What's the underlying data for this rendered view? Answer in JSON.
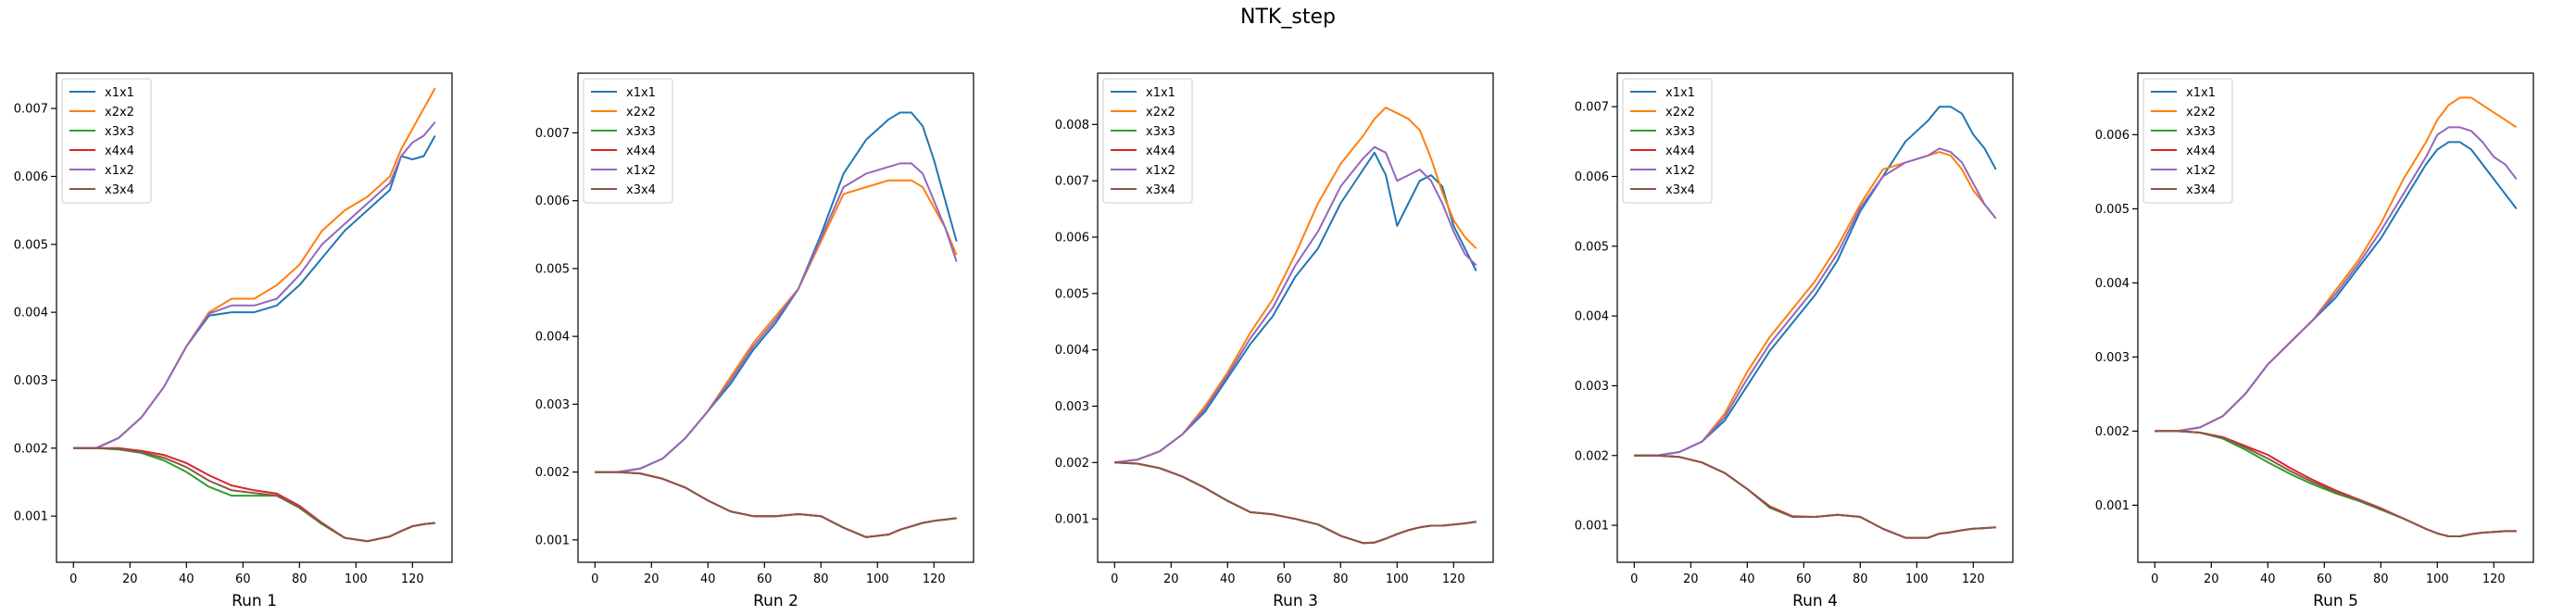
{
  "figure_title": "NTK_step",
  "colors": {
    "x1x1": "#1f77b4",
    "x2x2": "#ff7f0e",
    "x3x3": "#2ca02c",
    "x4x4": "#d62728",
    "x1x2": "#9467bd",
    "x3x4": "#8c564b"
  },
  "chart_data": [
    {
      "type": "line",
      "title": "",
      "xlabel": "Run 1",
      "ylabel": "",
      "xlim": [
        -6,
        134
      ],
      "ylim": [
        0.00032,
        0.00752
      ],
      "xticks": [
        0,
        20,
        40,
        60,
        80,
        100,
        120
      ],
      "yticks": [
        0.001,
        0.002,
        0.003,
        0.004,
        0.005,
        0.006,
        0.007
      ],
      "ytick_labels": [
        "0.001",
        "0.002",
        "0.003",
        "0.004",
        "0.005",
        "0.006",
        "0.007"
      ],
      "legend": "top-left",
      "grid": false,
      "x": [
        0,
        8,
        16,
        24,
        32,
        40,
        48,
        56,
        64,
        72,
        80,
        88,
        96,
        104,
        112,
        116,
        120,
        124,
        128
      ],
      "series": [
        {
          "name": "x1x1",
          "values": [
            0.002,
            0.002,
            0.00215,
            0.00245,
            0.0029,
            0.0035,
            0.00395,
            0.004,
            0.004,
            0.0041,
            0.0044,
            0.0048,
            0.0052,
            0.0055,
            0.0058,
            0.0063,
            0.00625,
            0.0063,
            0.0066
          ]
        },
        {
          "name": "x2x2",
          "values": [
            0.002,
            0.002,
            0.00215,
            0.00245,
            0.0029,
            0.0035,
            0.004,
            0.0042,
            0.0042,
            0.0044,
            0.0047,
            0.0052,
            0.0055,
            0.0057,
            0.006,
            0.0064,
            0.0067,
            0.007,
            0.0073
          ]
        },
        {
          "name": "x3x3",
          "values": [
            0.002,
            0.002,
            0.00198,
            0.00193,
            0.00182,
            0.00165,
            0.00143,
            0.0013,
            0.0013,
            0.0013,
            0.00112,
            0.00088,
            0.00068,
            0.00063,
            0.0007,
            0.00078,
            0.00085,
            0.00088,
            0.0009
          ]
        },
        {
          "name": "x4x4",
          "values": [
            0.002,
            0.002,
            0.002,
            0.00196,
            0.0019,
            0.00178,
            0.0016,
            0.00145,
            0.00138,
            0.00133,
            0.00115,
            0.0009,
            0.00068,
            0.00063,
            0.0007,
            0.00078,
            0.00085,
            0.00088,
            0.0009
          ]
        },
        {
          "name": "x1x2",
          "values": [
            0.002,
            0.002,
            0.00215,
            0.00245,
            0.0029,
            0.0035,
            0.00398,
            0.0041,
            0.0041,
            0.0042,
            0.00455,
            0.005,
            0.0053,
            0.0056,
            0.0059,
            0.0063,
            0.0065,
            0.0066,
            0.0068
          ]
        },
        {
          "name": "x3x4",
          "values": [
            0.002,
            0.002,
            0.00199,
            0.00194,
            0.00186,
            0.00172,
            0.00152,
            0.00138,
            0.00134,
            0.0013,
            0.00113,
            0.00089,
            0.00068,
            0.00063,
            0.0007,
            0.00078,
            0.00085,
            0.00088,
            0.0009
          ]
        }
      ]
    },
    {
      "type": "line",
      "title": "",
      "xlabel": "Run 2",
      "ylabel": "",
      "xlim": [
        -6,
        134
      ],
      "ylim": [
        0.00067,
        0.00788
      ],
      "xticks": [
        0,
        20,
        40,
        60,
        80,
        100,
        120
      ],
      "yticks": [
        0.001,
        0.002,
        0.003,
        0.004,
        0.005,
        0.006,
        0.007
      ],
      "ytick_labels": [
        "0.001",
        "0.002",
        "0.003",
        "0.004",
        "0.005",
        "0.006",
        "0.007"
      ],
      "legend": "top-left",
      "grid": false,
      "x": [
        0,
        8,
        16,
        24,
        32,
        40,
        48,
        56,
        64,
        72,
        80,
        88,
        96,
        104,
        108,
        112,
        116,
        120,
        124,
        128
      ],
      "series": [
        {
          "name": "x1x1",
          "values": [
            0.002,
            0.002,
            0.00205,
            0.0022,
            0.0025,
            0.0029,
            0.0033,
            0.0038,
            0.0042,
            0.0047,
            0.0055,
            0.0064,
            0.0069,
            0.0072,
            0.0073,
            0.0073,
            0.0071,
            0.0066,
            0.006,
            0.0054
          ]
        },
        {
          "name": "x2x2",
          "values": [
            0.002,
            0.002,
            0.00205,
            0.0022,
            0.0025,
            0.0029,
            0.0034,
            0.0039,
            0.0043,
            0.0047,
            0.0054,
            0.0061,
            0.0062,
            0.0063,
            0.0063,
            0.0063,
            0.0062,
            0.0059,
            0.0056,
            0.0052
          ]
        },
        {
          "name": "x3x3",
          "values": [
            0.002,
            0.002,
            0.00198,
            0.0019,
            0.00177,
            0.00158,
            0.00142,
            0.00135,
            0.00135,
            0.00138,
            0.00135,
            0.00118,
            0.00104,
            0.00108,
            0.00115,
            0.0012,
            0.00125,
            0.00128,
            0.0013,
            0.00132
          ]
        },
        {
          "name": "x4x4",
          "values": [
            0.002,
            0.002,
            0.00198,
            0.0019,
            0.00177,
            0.00158,
            0.00142,
            0.00135,
            0.00135,
            0.00138,
            0.00135,
            0.00118,
            0.00104,
            0.00108,
            0.00115,
            0.0012,
            0.00125,
            0.00128,
            0.0013,
            0.00132
          ]
        },
        {
          "name": "x1x2",
          "values": [
            0.002,
            0.002,
            0.00205,
            0.0022,
            0.0025,
            0.0029,
            0.00335,
            0.00385,
            0.00425,
            0.0047,
            0.00545,
            0.0062,
            0.0064,
            0.0065,
            0.00655,
            0.00655,
            0.0064,
            0.006,
            0.0056,
            0.0051
          ]
        },
        {
          "name": "x3x4",
          "values": [
            0.002,
            0.002,
            0.00198,
            0.0019,
            0.00177,
            0.00158,
            0.00142,
            0.00135,
            0.00135,
            0.00138,
            0.00135,
            0.00118,
            0.00104,
            0.00108,
            0.00115,
            0.0012,
            0.00125,
            0.00128,
            0.0013,
            0.00132
          ]
        }
      ]
    },
    {
      "type": "line",
      "title": "",
      "xlabel": "Run 3",
      "ylabel": "",
      "xlim": [
        -6,
        134
      ],
      "ylim": [
        0.00023,
        0.00891
      ],
      "xticks": [
        0,
        20,
        40,
        60,
        80,
        100,
        120
      ],
      "yticks": [
        0.001,
        0.002,
        0.003,
        0.004,
        0.005,
        0.006,
        0.007,
        0.008
      ],
      "ytick_labels": [
        "0.001",
        "0.002",
        "0.003",
        "0.004",
        "0.005",
        "0.006",
        "0.007",
        "0.008"
      ],
      "legend": "top-left",
      "grid": false,
      "x": [
        0,
        8,
        16,
        24,
        32,
        40,
        48,
        56,
        64,
        72,
        80,
        88,
        92,
        96,
        100,
        104,
        108,
        112,
        116,
        120,
        124,
        128
      ],
      "series": [
        {
          "name": "x1x1",
          "values": [
            0.002,
            0.00205,
            0.0022,
            0.0025,
            0.0029,
            0.0035,
            0.0041,
            0.0046,
            0.0053,
            0.0058,
            0.0066,
            0.0072,
            0.0075,
            0.0071,
            0.0062,
            0.0066,
            0.007,
            0.0071,
            0.0069,
            0.0062,
            0.0058,
            0.0054
          ]
        },
        {
          "name": "x2x2",
          "values": [
            0.002,
            0.00205,
            0.0022,
            0.0025,
            0.003,
            0.0036,
            0.0043,
            0.0049,
            0.0057,
            0.0066,
            0.0073,
            0.0078,
            0.0081,
            0.0083,
            0.0082,
            0.0081,
            0.0079,
            0.0074,
            0.0068,
            0.0063,
            0.006,
            0.0058
          ]
        },
        {
          "name": "x3x3",
          "values": [
            0.002,
            0.00198,
            0.0019,
            0.00175,
            0.00155,
            0.00132,
            0.00112,
            0.00108,
            0.001,
            0.0009,
            0.0007,
            0.00057,
            0.00058,
            0.00065,
            0.00073,
            0.0008,
            0.00085,
            0.00088,
            0.00088,
            0.0009,
            0.00092,
            0.00095
          ]
        },
        {
          "name": "x4x4",
          "values": [
            0.002,
            0.00198,
            0.0019,
            0.00175,
            0.00155,
            0.00132,
            0.00112,
            0.00108,
            0.001,
            0.0009,
            0.0007,
            0.00057,
            0.00058,
            0.00065,
            0.00073,
            0.0008,
            0.00085,
            0.00088,
            0.00088,
            0.0009,
            0.00092,
            0.00095
          ]
        },
        {
          "name": "x1x2",
          "values": [
            0.002,
            0.00205,
            0.0022,
            0.0025,
            0.00295,
            0.00355,
            0.0042,
            0.00475,
            0.0055,
            0.0061,
            0.0069,
            0.0074,
            0.0076,
            0.0075,
            0.007,
            0.0071,
            0.0072,
            0.007,
            0.0066,
            0.0061,
            0.0057,
            0.0055
          ]
        },
        {
          "name": "x3x4",
          "values": [
            0.002,
            0.00198,
            0.0019,
            0.00175,
            0.00155,
            0.00132,
            0.00112,
            0.00108,
            0.001,
            0.0009,
            0.0007,
            0.00057,
            0.00058,
            0.00065,
            0.00073,
            0.0008,
            0.00085,
            0.00088,
            0.00088,
            0.0009,
            0.00092,
            0.00095
          ]
        }
      ]
    },
    {
      "type": "line",
      "title": "",
      "xlabel": "Run 4",
      "ylabel": "",
      "xlim": [
        -6,
        134
      ],
      "ylim": [
        0.00047,
        0.00748
      ],
      "xticks": [
        0,
        20,
        40,
        60,
        80,
        100,
        120
      ],
      "yticks": [
        0.001,
        0.002,
        0.003,
        0.004,
        0.005,
        0.006,
        0.007
      ],
      "ytick_labels": [
        "0.001",
        "0.002",
        "0.003",
        "0.004",
        "0.005",
        "0.006",
        "0.007"
      ],
      "legend": "top-left",
      "grid": false,
      "x": [
        0,
        8,
        16,
        24,
        32,
        40,
        48,
        56,
        64,
        72,
        80,
        88,
        96,
        104,
        108,
        112,
        116,
        120,
        124,
        128
      ],
      "series": [
        {
          "name": "x1x1",
          "values": [
            0.002,
            0.002,
            0.00205,
            0.0022,
            0.0025,
            0.003,
            0.0035,
            0.0039,
            0.0043,
            0.0048,
            0.0055,
            0.006,
            0.0065,
            0.0068,
            0.007,
            0.007,
            0.0069,
            0.0066,
            0.0064,
            0.0061
          ]
        },
        {
          "name": "x2x2",
          "values": [
            0.002,
            0.002,
            0.00205,
            0.0022,
            0.0026,
            0.0032,
            0.0037,
            0.0041,
            0.0045,
            0.005,
            0.0056,
            0.0061,
            0.0062,
            0.0063,
            0.00635,
            0.0063,
            0.0061,
            0.0058,
            0.0056,
            0.0054
          ]
        },
        {
          "name": "x3x3",
          "values": [
            0.002,
            0.002,
            0.00198,
            0.0019,
            0.00175,
            0.00152,
            0.00125,
            0.00112,
            0.00112,
            0.00115,
            0.00112,
            0.00095,
            0.00082,
            0.00082,
            0.00088,
            0.0009,
            0.00093,
            0.00095,
            0.00096,
            0.00097
          ]
        },
        {
          "name": "x4x4",
          "values": [
            0.002,
            0.002,
            0.00198,
            0.0019,
            0.00175,
            0.00152,
            0.00127,
            0.00113,
            0.00112,
            0.00115,
            0.00112,
            0.00095,
            0.00082,
            0.00082,
            0.00088,
            0.0009,
            0.00093,
            0.00095,
            0.00096,
            0.00097
          ]
        },
        {
          "name": "x1x2",
          "values": [
            0.002,
            0.002,
            0.00205,
            0.0022,
            0.00255,
            0.0031,
            0.0036,
            0.004,
            0.0044,
            0.0049,
            0.00555,
            0.006,
            0.0062,
            0.0063,
            0.0064,
            0.00635,
            0.0062,
            0.0059,
            0.0056,
            0.0054
          ]
        },
        {
          "name": "x3x4",
          "values": [
            0.002,
            0.002,
            0.00198,
            0.0019,
            0.00175,
            0.00152,
            0.00126,
            0.00112,
            0.00112,
            0.00115,
            0.00112,
            0.00095,
            0.00082,
            0.00082,
            0.00088,
            0.0009,
            0.00093,
            0.00095,
            0.00096,
            0.00097
          ]
        }
      ]
    },
    {
      "type": "line",
      "title": "",
      "xlabel": "Run 5",
      "ylabel": "",
      "xlim": [
        -6,
        134
      ],
      "ylim": [
        0.00023,
        0.00683
      ],
      "xticks": [
        0,
        20,
        40,
        60,
        80,
        100,
        120
      ],
      "yticks": [
        0.001,
        0.002,
        0.003,
        0.004,
        0.005,
        0.006
      ],
      "ytick_labels": [
        "0.001",
        "0.002",
        "0.003",
        "0.004",
        "0.005",
        "0.006"
      ],
      "legend": "top-left",
      "grid": false,
      "x": [
        0,
        8,
        16,
        24,
        32,
        40,
        48,
        56,
        64,
        72,
        80,
        88,
        96,
        100,
        104,
        108,
        112,
        116,
        120,
        124,
        128
      ],
      "series": [
        {
          "name": "x1x1",
          "values": [
            0.002,
            0.002,
            0.00205,
            0.0022,
            0.0025,
            0.0029,
            0.0032,
            0.0035,
            0.0038,
            0.0042,
            0.0046,
            0.0051,
            0.0056,
            0.0058,
            0.0059,
            0.0059,
            0.0058,
            0.0056,
            0.0054,
            0.0052,
            0.005
          ]
        },
        {
          "name": "x2x2",
          "values": [
            0.002,
            0.002,
            0.00205,
            0.0022,
            0.0025,
            0.0029,
            0.0032,
            0.0035,
            0.0039,
            0.0043,
            0.0048,
            0.0054,
            0.0059,
            0.0062,
            0.0064,
            0.0065,
            0.0065,
            0.0064,
            0.0063,
            0.0062,
            0.0061
          ]
        },
        {
          "name": "x3x3",
          "values": [
            0.002,
            0.002,
            0.00198,
            0.0019,
            0.00175,
            0.00158,
            0.00142,
            0.00128,
            0.00116,
            0.00106,
            0.00094,
            0.00082,
            0.00068,
            0.00062,
            0.00058,
            0.00058,
            0.00061,
            0.00063,
            0.00064,
            0.00065,
            0.00065
          ]
        },
        {
          "name": "x4x4",
          "values": [
            0.002,
            0.002,
            0.00198,
            0.00192,
            0.0018,
            0.00168,
            0.0015,
            0.00134,
            0.0012,
            0.00108,
            0.00096,
            0.00082,
            0.00068,
            0.00062,
            0.00058,
            0.00058,
            0.00061,
            0.00063,
            0.00064,
            0.00065,
            0.00065
          ]
        },
        {
          "name": "x1x2",
          "values": [
            0.002,
            0.002,
            0.00205,
            0.0022,
            0.0025,
            0.0029,
            0.0032,
            0.0035,
            0.00385,
            0.00425,
            0.0047,
            0.0052,
            0.0057,
            0.006,
            0.0061,
            0.0061,
            0.00605,
            0.0059,
            0.0057,
            0.0056,
            0.0054
          ]
        },
        {
          "name": "x3x4",
          "values": [
            0.002,
            0.002,
            0.00198,
            0.00191,
            0.00178,
            0.00163,
            0.00146,
            0.00131,
            0.00118,
            0.00107,
            0.00095,
            0.00082,
            0.00068,
            0.00062,
            0.00058,
            0.00058,
            0.00061,
            0.00063,
            0.00064,
            0.00065,
            0.00065
          ]
        }
      ]
    }
  ]
}
